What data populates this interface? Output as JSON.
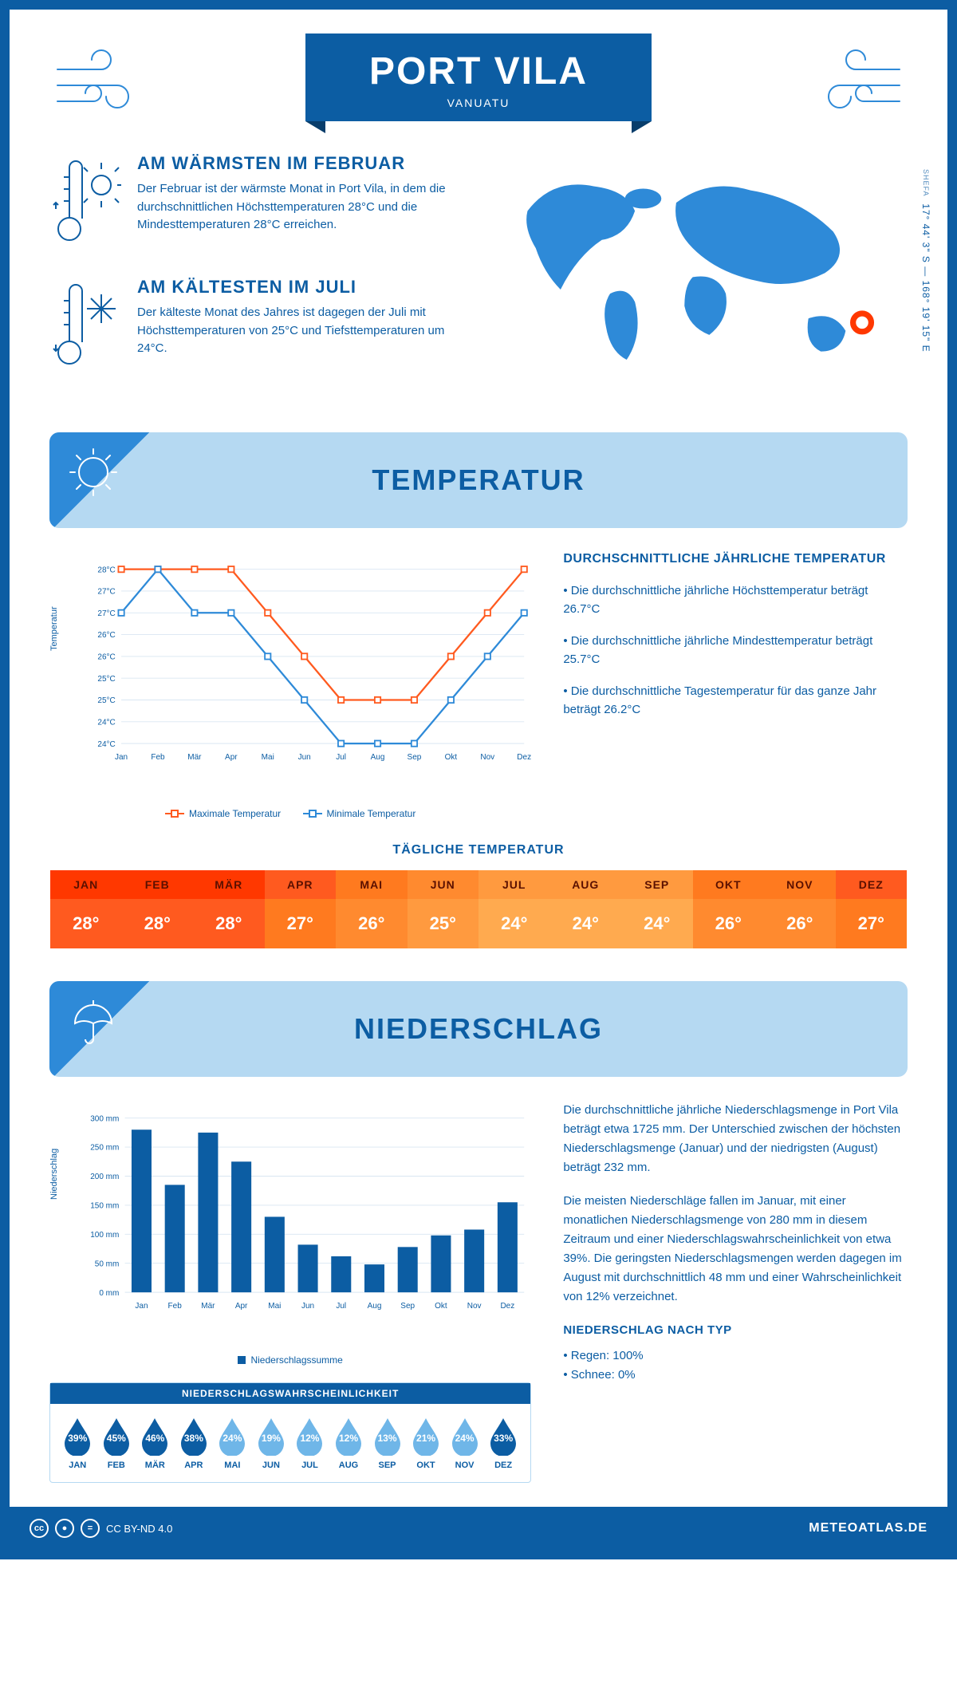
{
  "header": {
    "title": "PORT VILA",
    "subtitle": "VANUATU"
  },
  "coords": {
    "text": "17° 44' 3\" S — 168° 19' 15\" E",
    "region": "SHEFA"
  },
  "facts": {
    "warm": {
      "title": "AM WÄRMSTEN IM FEBRUAR",
      "text": "Der Februar ist der wärmste Monat in Port Vila, in dem die durchschnittlichen Höchsttemperaturen 28°C und die Mindesttemperaturen 28°C erreichen."
    },
    "cold": {
      "title": "AM KÄLTESTEN IM JULI",
      "text": "Der kälteste Monat des Jahres ist dagegen der Juli mit Höchsttemperaturen von 25°C und Tiefsttemperaturen um 24°C."
    }
  },
  "months_short": [
    "Jan",
    "Feb",
    "Mär",
    "Apr",
    "Mai",
    "Jun",
    "Jul",
    "Aug",
    "Sep",
    "Okt",
    "Nov",
    "Dez"
  ],
  "months_upper": [
    "JAN",
    "FEB",
    "MÄR",
    "APR",
    "MAI",
    "JUN",
    "JUL",
    "AUG",
    "SEP",
    "OKT",
    "NOV",
    "DEZ"
  ],
  "temperature": {
    "section_title": "TEMPERATUR",
    "y_label": "Temperatur",
    "y_ticks": [
      "24°C",
      "24°C",
      "25°C",
      "25°C",
      "26°C",
      "26°C",
      "27°C",
      "27°C",
      "28°C"
    ],
    "y_min": 24,
    "y_max": 28,
    "max_series": {
      "label": "Maximale Temperatur",
      "color": "#ff5a1f",
      "values": [
        28,
        28,
        28,
        28,
        27,
        26,
        25,
        25,
        25,
        26,
        27,
        28
      ]
    },
    "min_series": {
      "label": "Minimale Temperatur",
      "color": "#2e8ad8",
      "values": [
        27,
        28,
        27,
        27,
        26,
        25,
        24,
        24,
        24,
        25,
        26,
        27
      ]
    },
    "info_title": "DURCHSCHNITTLICHE JÄHRLICHE TEMPERATUR",
    "info_items": [
      "• Die durchschnittliche jährliche Höchsttemperatur beträgt 26.7°C",
      "• Die durchschnittliche jährliche Mindesttemperatur beträgt 25.7°C",
      "• Die durchschnittliche Tagestemperatur für das ganze Jahr beträgt 26.2°C"
    ],
    "daily_title": "TÄGLICHE TEMPERATUR",
    "daily_values": [
      "28°",
      "28°",
      "28°",
      "27°",
      "26°",
      "25°",
      "24°",
      "24°",
      "24°",
      "26°",
      "26°",
      "27°"
    ],
    "daily_head_colors": [
      "#ff3800",
      "#ff3800",
      "#ff3800",
      "#ff5a1f",
      "#ff7a1f",
      "#ff8a2f",
      "#ff9a3f",
      "#ff9a3f",
      "#ff9a3f",
      "#ff7a1f",
      "#ff7a1f",
      "#ff5a1f"
    ],
    "daily_val_colors": [
      "#ff5a1f",
      "#ff5a1f",
      "#ff5a1f",
      "#ff7a1f",
      "#ff8a2f",
      "#ff9a3f",
      "#ffaa4f",
      "#ffaa4f",
      "#ffaa4f",
      "#ff8a2f",
      "#ff8a2f",
      "#ff7a1f"
    ]
  },
  "precip": {
    "section_title": "NIEDERSCHLAG",
    "y_label": "Niederschlag",
    "y_max": 300,
    "y_step": 50,
    "y_ticks": [
      "0 mm",
      "50 mm",
      "100 mm",
      "150 mm",
      "200 mm",
      "250 mm",
      "300 mm"
    ],
    "values": [
      280,
      185,
      275,
      225,
      130,
      82,
      62,
      48,
      78,
      98,
      108,
      155
    ],
    "bar_color": "#0c5da3",
    "legend": "Niederschlagssumme",
    "prob_title": "NIEDERSCHLAGSWAHRSCHEINLICHKEIT",
    "prob_values": [
      "39%",
      "45%",
      "46%",
      "38%",
      "24%",
      "19%",
      "12%",
      "12%",
      "13%",
      "21%",
      "24%",
      "33%"
    ],
    "prob_raw": [
      39,
      45,
      46,
      38,
      24,
      19,
      12,
      12,
      13,
      21,
      24,
      33
    ],
    "drop_dark": "#0c5da3",
    "drop_light": "#6fb6e8",
    "text1": "Die durchschnittliche jährliche Niederschlagsmenge in Port Vila beträgt etwa 1725 mm. Der Unterschied zwischen der höchsten Niederschlagsmenge (Januar) und der niedrigsten (August) beträgt 232 mm.",
    "text2": "Die meisten Niederschläge fallen im Januar, mit einer monatlichen Niederschlagsmenge von 280 mm in diesem Zeitraum und einer Niederschlagswahrscheinlichkeit von etwa 39%. Die geringsten Niederschlagsmengen werden dagegen im August mit durchschnittlich 48 mm und einer Wahrscheinlichkeit von 12% verzeichnet.",
    "type_title": "NIEDERSCHLAG NACH TYP",
    "type_items": [
      "• Regen: 100%",
      "• Schnee: 0%"
    ]
  },
  "footer": {
    "license": "CC BY-ND 4.0",
    "site": "METEOATLAS.DE"
  }
}
